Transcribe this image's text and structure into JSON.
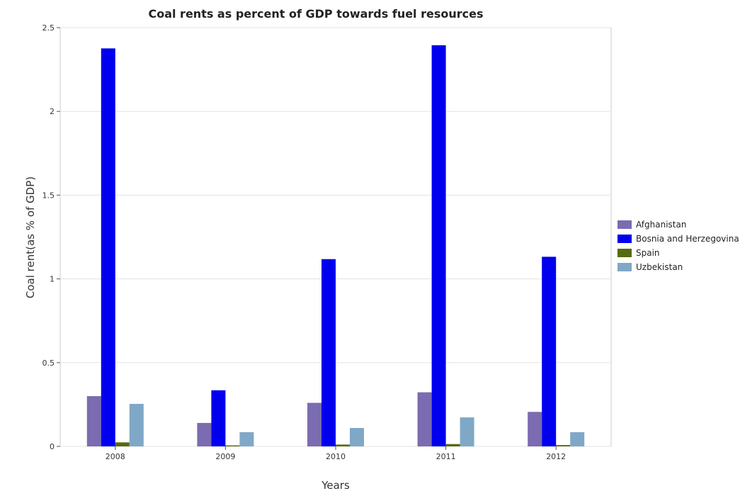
{
  "chart_data": {
    "type": "bar",
    "title": "Coal rents as percent of GDP towards fuel resources",
    "xlabel": "Years",
    "ylabel": "Coal rent(as % of GDP)",
    "categories": [
      "2008",
      "2009",
      "2010",
      "2011",
      "2012"
    ],
    "ylim": [
      0,
      2.5
    ],
    "yticks": [
      0,
      0.5,
      1,
      1.5,
      2,
      2.5
    ],
    "ytick_labels": [
      "0",
      "0.5",
      "1",
      "1.5",
      "2",
      "2.5"
    ],
    "grid": true,
    "legend_position": "right",
    "series": [
      {
        "name": "Afghanistan",
        "color": "#7b6bb0",
        "values": [
          0.3,
          0.14,
          0.26,
          0.323,
          0.206
        ]
      },
      {
        "name": "Bosnia and Herzegovina",
        "color": "#0000ee",
        "values": [
          2.376,
          0.335,
          1.118,
          2.395,
          1.132
        ]
      },
      {
        "name": "Spain",
        "color": "#556b0f",
        "values": [
          0.024,
          0.006,
          0.011,
          0.014,
          0.008
        ]
      },
      {
        "name": "Uzbekistan",
        "color": "#7fa8c6",
        "values": [
          0.254,
          0.085,
          0.11,
          0.173,
          0.085
        ]
      }
    ]
  }
}
